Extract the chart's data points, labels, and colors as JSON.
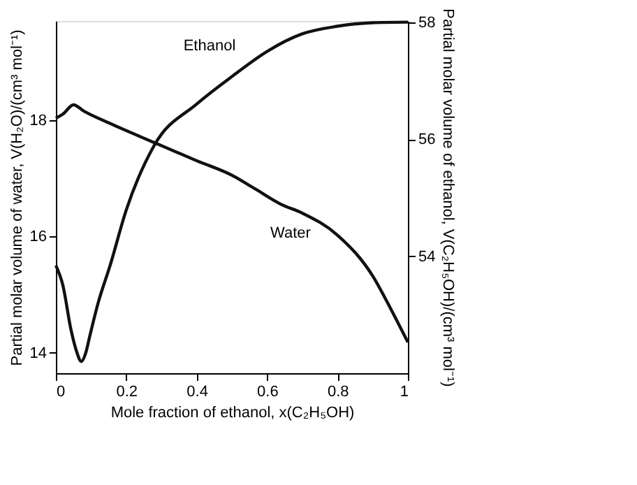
{
  "chart_data": {
    "type": "line",
    "xlabel": "Mole fraction of ethanol, x(C₂H₅OH)",
    "ylabel": "Partial molar volume of water, V(H₂O)/(cm³ mol⁻¹)",
    "y2label": "Partial molar volume of ethanol, V(C₂H₅OH)/(cm³ mol⁻¹)",
    "xlim": [
      0,
      1
    ],
    "xticks": [
      0,
      0.2,
      0.4,
      0.6,
      0.8,
      1
    ],
    "ylim": [
      13.65,
      19.7
    ],
    "yticks": [
      14,
      16,
      18
    ],
    "y2lim": [
      52,
      58.02
    ],
    "y2ticks": [
      54,
      56,
      58
    ],
    "grid": false,
    "legend": false,
    "marker": "none",
    "line_style": "solid",
    "series": [
      {
        "color": "#111111",
        "x": [
          0,
          0.02,
          0.05,
          0.08,
          0.15,
          0.28,
          0.4,
          0.5,
          0.565,
          0.64,
          0.7,
          0.8,
          0.9,
          0.95,
          1
        ],
        "values": [
          18.03,
          18.1,
          18.26,
          18.15,
          17.95,
          17.61,
          17.3,
          17.05,
          16.82,
          16.55,
          16.4,
          16.02,
          15.32,
          14.77,
          14.18
        ]
      },
      {
        "color": "#111111",
        "axis": "y2",
        "x": [
          0,
          0.02,
          0.043,
          0.06,
          0.072,
          0.085,
          0.095,
          0.12,
          0.154,
          0.2,
          0.28,
          0.4,
          0.5,
          0.6,
          0.7,
          0.8,
          0.9,
          1
        ],
        "values": [
          53.84,
          53.5,
          52.74,
          52.35,
          52.2,
          52.35,
          52.6,
          53.2,
          53.84,
          54.79,
          55.9,
          56.6,
          57.07,
          57.5,
          57.8,
          57.93,
          57.99,
          58.0
        ]
      }
    ],
    "annotations": [
      "Ethanol",
      "Water"
    ]
  }
}
